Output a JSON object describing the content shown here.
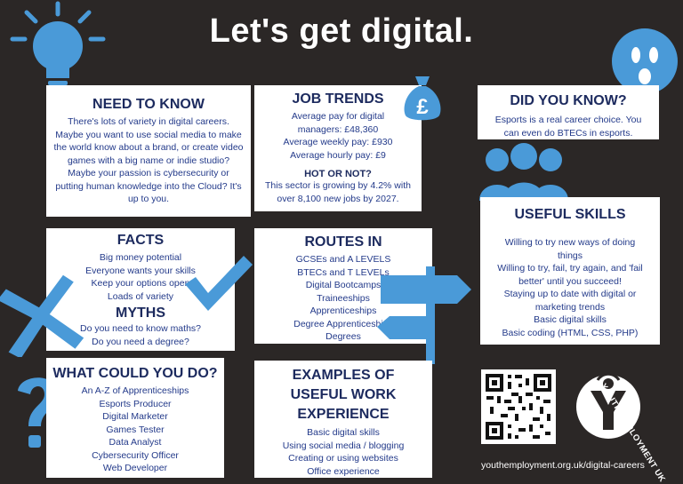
{
  "page_title": "Let's get digital.",
  "need_to_know": {
    "heading": "NEED TO KNOW",
    "body": "There's lots of variety in digital careers. Maybe you want to use social media to make the world know about a brand, or create video games with a big name or indie studio? Maybe your passion is cybersecurity or putting human knowledge into the Cloud? It's up to you."
  },
  "job_trends": {
    "heading": "JOB TRENDS",
    "lines": [
      "Average pay for digital",
      "managers: £48,360",
      "Average weekly pay: £930",
      "Average hourly pay: £9"
    ],
    "subheading": "HOT OR NOT?",
    "sub_lines": [
      "This sector is growing by 4.2% with",
      "over 8,100 new jobs by 2027."
    ]
  },
  "did_you_know": {
    "heading": "DID YOU KNOW?",
    "lines": [
      "Esports is a real career choice. You",
      "can even do BTECs in esports."
    ]
  },
  "facts": {
    "heading": "FACTS",
    "items": [
      "Big money potential",
      "Everyone wants your skills",
      "Keep your options open",
      "Loads of variety"
    ]
  },
  "myths": {
    "heading": "MYTHS",
    "items": [
      "Do you need to know maths?",
      "Do you need a degree?"
    ]
  },
  "routes_in": {
    "heading": "ROUTES IN",
    "items": [
      "GCSEs and A LEVELS",
      "BTECs and T LEVELs",
      "Digital Bootcamps",
      "Traineeships",
      "Apprenticeships",
      "Degree Apprenticeships",
      "Degrees"
    ]
  },
  "useful_skills": {
    "heading": "USEFUL SKILLS",
    "items": [
      "Willing to try new ways of doing",
      "things",
      "Willing to try, fail, try again, and 'fail",
      "better' until you succeed!",
      "Staying up to date with digital or",
      "marketing trends",
      "Basic digital skills",
      "Basic coding (HTML, CSS, PHP)"
    ]
  },
  "what_could_you_do": {
    "heading": "WHAT COULD YOU DO?",
    "items": [
      "An A-Z of Apprenticeships",
      "Esports Producer",
      "Digital Marketer",
      "Games Tester",
      "Data Analyst",
      "Cybersecurity Officer",
      "Web Developer"
    ]
  },
  "work_experience": {
    "heading_lines": [
      "EXAMPLES OF",
      "USEFUL WORK",
      "EXPERIENCE"
    ],
    "items": [
      "Basic digital skills",
      "Using social media / blogging",
      "Creating or using websites",
      "Office experience"
    ]
  },
  "logo_text": "YOUTH EMPLOYMENT UK",
  "footer_url": "youthemployment.org.uk/digital-careers",
  "colors": {
    "background": "#2b2726",
    "accent_blue": "#4a9ad8",
    "text_navy": "#233a8a"
  },
  "icons": [
    "lightbulb-icon",
    "money-bag-icon",
    "surprised-face-icon",
    "people-icon",
    "checkmark-icon",
    "cross-icon",
    "signpost-icon",
    "question-mark-icon",
    "qr-code-icon"
  ]
}
